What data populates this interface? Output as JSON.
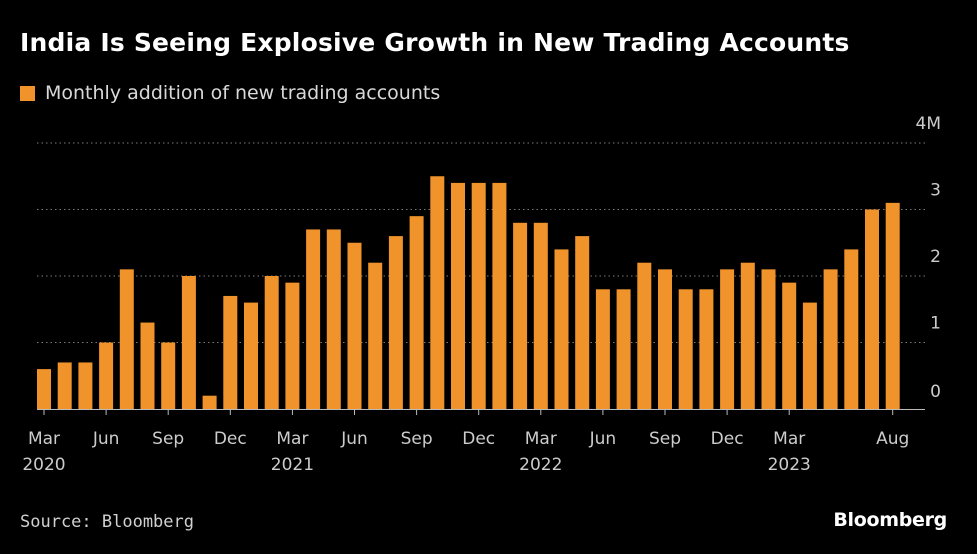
{
  "colors": {
    "background": "#000000",
    "bar": "#F0932B",
    "text": "#FFFFFF",
    "muted": "#CCCCCC",
    "grid": "#7A7A7A"
  },
  "header": {
    "title": "India Is Seeing Explosive Growth in New Trading Accounts",
    "legend_label": "Monthly addition of new trading accounts"
  },
  "footer": {
    "source": "Source: Bloomberg",
    "logo": "Bloomberg"
  },
  "chart_data": {
    "type": "bar",
    "title": "India Is Seeing Explosive Growth in New Trading Accounts",
    "series": [
      {
        "name": "Monthly addition of new trading accounts",
        "values": [
          0.6,
          0.7,
          0.7,
          1.0,
          2.1,
          1.3,
          1.0,
          2.0,
          0.2,
          1.7,
          1.6,
          2.0,
          1.9,
          2.7,
          2.7,
          2.5,
          2.2,
          2.6,
          2.9,
          3.5,
          3.4,
          3.4,
          3.4,
          2.8,
          2.8,
          2.4,
          2.6,
          1.8,
          1.8,
          2.2,
          2.1,
          1.8,
          1.8,
          2.1,
          2.2,
          2.1,
          1.9,
          1.6,
          2.1,
          2.4,
          3.0,
          3.1
        ]
      }
    ],
    "x_tick_labels": [
      {
        "index": 0,
        "month": "Mar",
        "year": "2020"
      },
      {
        "index": 3,
        "month": "Jun",
        "year": ""
      },
      {
        "index": 6,
        "month": "Sep",
        "year": ""
      },
      {
        "index": 9,
        "month": "Dec",
        "year": ""
      },
      {
        "index": 12,
        "month": "Mar",
        "year": "2021"
      },
      {
        "index": 15,
        "month": "Jun",
        "year": ""
      },
      {
        "index": 18,
        "month": "Sep",
        "year": ""
      },
      {
        "index": 21,
        "month": "Dec",
        "year": ""
      },
      {
        "index": 24,
        "month": "Mar",
        "year": "2022"
      },
      {
        "index": 27,
        "month": "Jun",
        "year": ""
      },
      {
        "index": 30,
        "month": "Sep",
        "year": ""
      },
      {
        "index": 33,
        "month": "Dec",
        "year": ""
      },
      {
        "index": 36,
        "month": "Mar",
        "year": "2023"
      },
      {
        "index": 41,
        "month": "Aug",
        "year": ""
      }
    ],
    "y_ticks": [
      {
        "value": 0,
        "label": "0"
      },
      {
        "value": 1,
        "label": "1"
      },
      {
        "value": 2,
        "label": "2"
      },
      {
        "value": 3,
        "label": "3"
      },
      {
        "value": 4,
        "label": "4M"
      }
    ],
    "ylim": [
      0,
      4
    ],
    "xlabel": "",
    "ylabel": "",
    "grid": true,
    "legend_position": "top-left"
  }
}
